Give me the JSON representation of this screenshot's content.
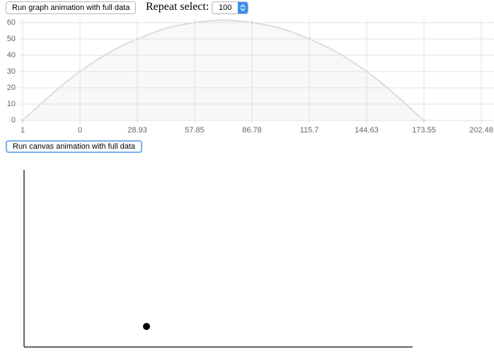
{
  "controls": {
    "graph_button": "Run graph animation with full data",
    "repeat_label": "Repeat select:",
    "repeat_value": "100",
    "canvas_button": "Run canvas animation with full data"
  },
  "chart_data": {
    "type": "line",
    "categories": [
      "1",
      "0",
      "28.93",
      "57.85",
      "86.78",
      "115.7",
      "144.63",
      "173.55",
      "202.48"
    ],
    "values": [
      0,
      30,
      50,
      60,
      60,
      50,
      30,
      0,
      null
    ],
    "color": "#dcdcdc",
    "fill": "rgba(220,220,220,0.2)",
    "ylim": [
      0,
      60
    ],
    "yticks": [
      0,
      10,
      20,
      30,
      40,
      50,
      60
    ],
    "grid": true
  }
}
